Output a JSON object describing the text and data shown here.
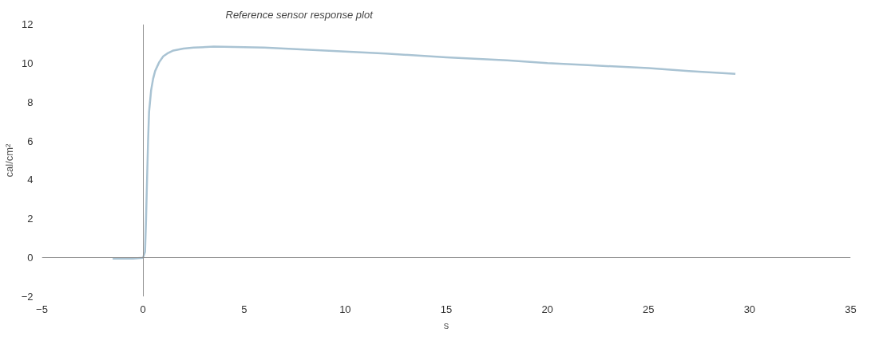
{
  "chart_data": {
    "type": "line",
    "title": "Reference sensor response plot",
    "xlabel": "s",
    "ylabel": "cal/cm²",
    "x": [
      -1.5,
      -0.5,
      0.0,
      0.1,
      0.15,
      0.2,
      0.25,
      0.3,
      0.4,
      0.5,
      0.6,
      0.8,
      1.0,
      1.2,
      1.5,
      2.0,
      2.5,
      3.5,
      5.0,
      6.0,
      8.0,
      10.0,
      12.0,
      15.0,
      18.0,
      20.0,
      22.0,
      25.0,
      27.0,
      29.3
    ],
    "series": [
      {
        "color": "#a9c3d3",
        "values": [
          -0.05,
          -0.05,
          0.0,
          0.3,
          2.0,
          4.0,
          6.0,
          7.5,
          8.6,
          9.2,
          9.6,
          10.05,
          10.35,
          10.5,
          10.65,
          10.75,
          10.8,
          10.85,
          10.82,
          10.8,
          10.7,
          10.6,
          10.5,
          10.3,
          10.15,
          10.0,
          9.9,
          9.75,
          9.6,
          9.45
        ]
      }
    ],
    "xlim": [
      -5,
      35
    ],
    "ylim": [
      -2,
      12
    ],
    "xticks": [
      -5,
      0,
      5,
      10,
      15,
      20,
      25,
      30,
      35
    ],
    "yticks": [
      -2,
      0,
      2,
      4,
      6,
      8,
      10,
      12
    ],
    "marker": "none",
    "line_style": "solid"
  }
}
